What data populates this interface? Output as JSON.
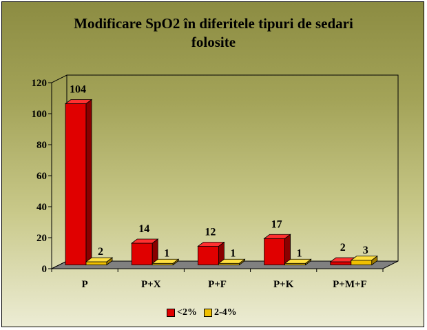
{
  "chart_data": {
    "type": "bar",
    "title": "Modificare SpO2 în diferitele tipuri de sedari folosite",
    "title_lines": [
      "Modificare SpO2 în diferitele tipuri de sedari",
      "folosite"
    ],
    "categories": [
      "P",
      "P+X",
      "P+F",
      "P+K",
      "P+M+F"
    ],
    "series": [
      {
        "name": "<2%",
        "values": [
          104,
          14,
          12,
          17,
          2
        ],
        "color": "#e00000",
        "side_color": "#8a0000",
        "top_color": "#ff3030"
      },
      {
        "name": "2-4%",
        "values": [
          2,
          1,
          1,
          1,
          3
        ],
        "color": "#f0c000",
        "side_color": "#a07c00",
        "top_color": "#ffe040"
      }
    ],
    "data_labels": [
      [
        "104",
        "14",
        "12",
        "17",
        "2"
      ],
      [
        "2",
        "1",
        "1",
        "1",
        "3"
      ]
    ],
    "y_ticks": [
      "0",
      "20",
      "40",
      "60",
      "80",
      "100",
      "120"
    ],
    "ylim": [
      0,
      120
    ],
    "xlabel": "",
    "ylabel": "",
    "grid": false,
    "legend_position": "bottom",
    "style": "3d-clustered-column"
  }
}
